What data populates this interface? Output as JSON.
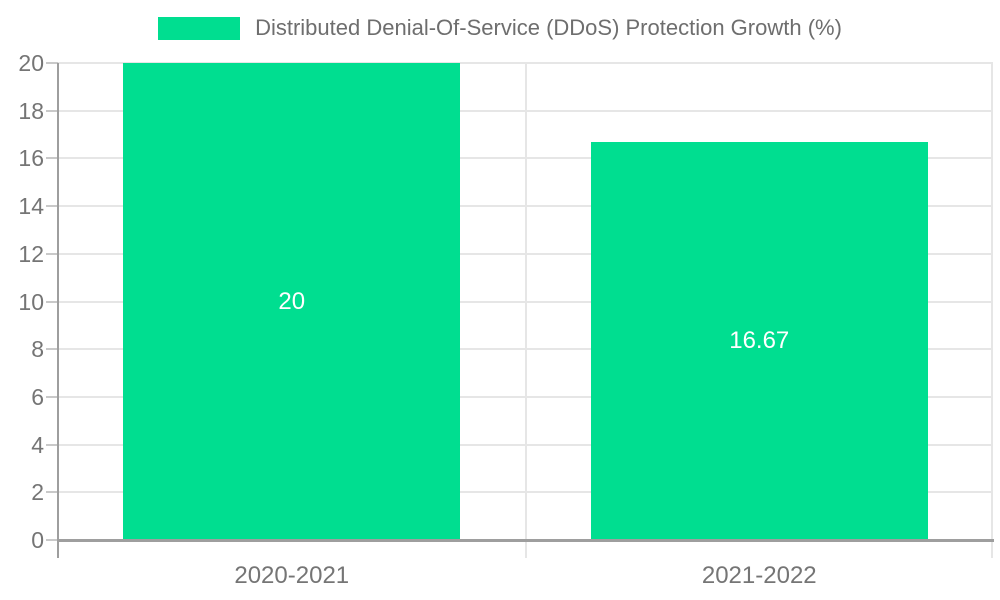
{
  "legend": {
    "series_label": "Distributed Denial-Of-Service (DDoS) Protection Growth (%)",
    "swatch_color": "#00DE90"
  },
  "chart_data": {
    "type": "bar",
    "title": "Distributed Denial-Of-Service (DDoS) Protection Growth (%)",
    "categories": [
      "2020-2021",
      "2021-2022"
    ],
    "values": [
      20,
      16.67
    ],
    "value_labels": [
      "20",
      "16.67"
    ],
    "xlabel": "",
    "ylabel": "",
    "ylim": [
      0,
      20
    ],
    "ytick_step": 2,
    "ytick_labels": [
      "0",
      "2",
      "4",
      "6",
      "8",
      "10",
      "12",
      "14",
      "16",
      "18",
      "20"
    ],
    "grid": true,
    "legend_position": "top",
    "bar_color": "#00DE90",
    "value_label_color": "#ffffff"
  },
  "axes": {
    "tick_label_color": "#757575",
    "grid_color": "#e6e6e6",
    "tick_mark_color": "#c9c9c9",
    "axis_line_color": "#9e9e9e"
  }
}
